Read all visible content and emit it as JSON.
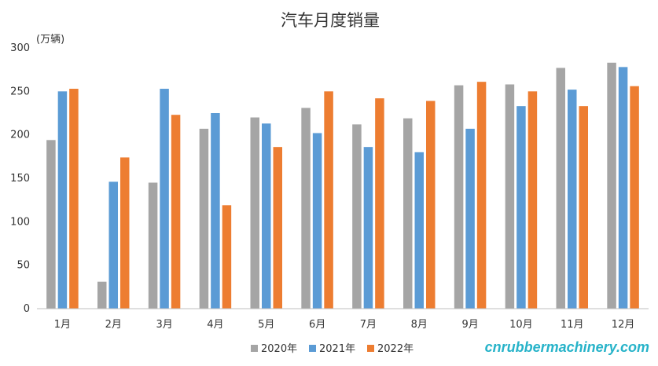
{
  "chart_data": {
    "type": "bar",
    "title": "汽车月度销量",
    "ylabel": "(万辆)",
    "xlabel": "",
    "ylim": [
      0,
      300
    ],
    "yticks": [
      0,
      50,
      100,
      150,
      200,
      250,
      300
    ],
    "categories": [
      "1月",
      "2月",
      "3月",
      "4月",
      "5月",
      "6月",
      "7月",
      "8月",
      "9月",
      "10月",
      "11月",
      "12月"
    ],
    "series": [
      {
        "name": "2020年",
        "color": "#a5a5a5",
        "values": [
          194,
          31,
          145,
          207,
          220,
          231,
          212,
          219,
          257,
          258,
          277,
          283
        ]
      },
      {
        "name": "2021年",
        "color": "#5b9bd5",
        "values": [
          250,
          146,
          253,
          225,
          213,
          202,
          186,
          180,
          207,
          233,
          252,
          278
        ]
      },
      {
        "name": "2022年",
        "color": "#ed7d31",
        "values": [
          253,
          174,
          223,
          119,
          186,
          250,
          242,
          239,
          261,
          250,
          233,
          256
        ]
      }
    ],
    "grid": false,
    "legend": "bottom"
  },
  "watermark": "cnrubbermachinery.com"
}
